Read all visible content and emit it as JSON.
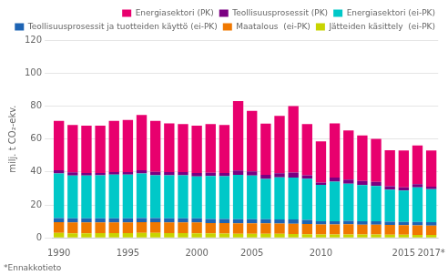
{
  "chart_data": {
    "type": "bar",
    "stacked": true,
    "categories": [
      "1990",
      null,
      null,
      null,
      null,
      "1995",
      null,
      null,
      null,
      null,
      "2000",
      null,
      null,
      null,
      "2005",
      null,
      null,
      null,
      null,
      "2010",
      null,
      null,
      null,
      null,
      null,
      "2015",
      null,
      "2017*"
    ],
    "series": [
      {
        "name": "Jätteiden käsittely  (ei-PK)",
        "color": "#c8d400",
        "values": [
          3.0,
          2.8,
          2.8,
          2.9,
          2.9,
          2.9,
          3.0,
          3.0,
          2.9,
          2.9,
          2.8,
          2.7,
          2.6,
          2.5,
          2.5,
          2.5,
          2.4,
          2.3,
          2.2,
          2.1,
          2.1,
          2.1,
          2.0,
          2.0,
          1.9,
          1.9,
          1.8,
          1.7
        ]
      },
      {
        "name": "Maatalous  (ei-PK)",
        "color": "#f07800",
        "values": [
          6.5,
          6.5,
          6.5,
          6.5,
          6.5,
          6.5,
          6.5,
          6.5,
          6.5,
          6.5,
          6.5,
          6.3,
          6.3,
          6.3,
          6.3,
          6.3,
          6.3,
          6.3,
          6.2,
          6.0,
          6.0,
          6.2,
          6.0,
          6.0,
          5.9,
          5.8,
          5.8,
          5.8
        ]
      },
      {
        "name": "Teollisuusprosessit ja tuotteiden käyttö (ei-PK)",
        "color": "#1e64b4",
        "values": [
          2.5,
          2.5,
          2.5,
          2.5,
          2.5,
          2.5,
          2.5,
          2.5,
          2.5,
          2.5,
          2.5,
          2.5,
          2.5,
          2.5,
          2.5,
          2.5,
          2.5,
          2.5,
          2.5,
          2.0,
          2.0,
          2.0,
          2.0,
          2.0,
          2.0,
          2.0,
          2.0,
          2.0
        ]
      },
      {
        "name": "Energiasektori (ei-PK)",
        "color": "#00c8c8",
        "values": [
          27.0,
          26.0,
          26.0,
          26.0,
          26.5,
          26.5,
          27.0,
          26.0,
          26.0,
          26.0,
          25.5,
          26.0,
          26.0,
          27.0,
          26.5,
          24.5,
          25.5,
          25.5,
          25.0,
          22.0,
          24.0,
          22.5,
          22.0,
          21.5,
          19.5,
          19.0,
          21.0,
          20.0
        ]
      },
      {
        "name": "Teollisuusprosessit (PK)",
        "color": "#7b0082",
        "values": [
          2.0,
          2.0,
          1.5,
          1.5,
          1.5,
          1.5,
          2.0,
          2.0,
          2.0,
          2.0,
          2.0,
          2.0,
          2.0,
          2.5,
          2.5,
          2.5,
          2.5,
          3.0,
          2.0,
          1.5,
          2.5,
          2.5,
          2.5,
          2.5,
          2.0,
          2.0,
          2.0,
          1.5
        ]
      },
      {
        "name": "Energiasektori (PK)",
        "color": "#e8006e",
        "values": [
          30.0,
          28.7,
          28.7,
          28.6,
          31.1,
          31.6,
          33.5,
          31.0,
          29.5,
          29.1,
          28.7,
          29.5,
          29.1,
          42.2,
          36.7,
          31.0,
          34.8,
          40.4,
          31.1,
          25.0,
          32.9,
          29.8,
          27.6,
          26.0,
          21.8,
          22.3,
          23.4,
          22.0
        ]
      }
    ],
    "ylabel": "milj. t CO₂-ekv.",
    "ylim": [
      0,
      120
    ],
    "yticks": [
      0,
      20,
      40,
      60,
      80,
      100,
      120
    ],
    "grid": true,
    "legend": "upper right",
    "footnote": "*Ennakkotieto"
  }
}
